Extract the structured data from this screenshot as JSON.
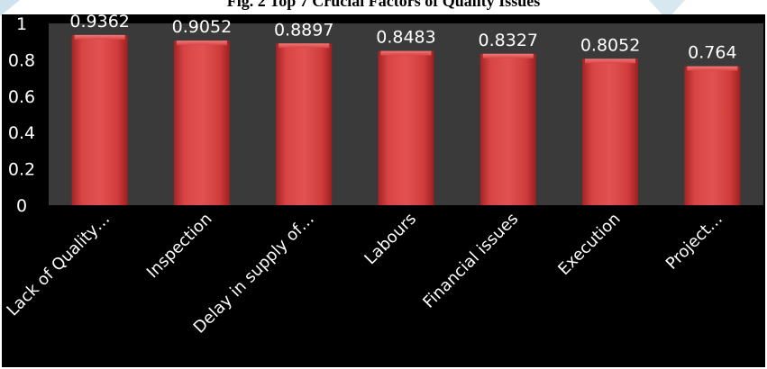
{
  "figure": {
    "title": "Fig. 2 Top 7 Crucial Factors of Quality Issues"
  },
  "colors": {
    "page_background": "#ffffff",
    "chart_background": "#000000",
    "plot_background": "#3a3a3a",
    "bar_fill": "#d03a3a",
    "text": "#ffffff",
    "watermark": "#cfe3ee"
  },
  "chart_data": {
    "type": "bar",
    "title": "",
    "categories": [
      "Lack of Quality…",
      "Inspection",
      "Delay in supply of…",
      "Labours",
      "Financial issues",
      "Execution",
      "Project…"
    ],
    "values": [
      0.9362,
      0.9052,
      0.8897,
      0.8483,
      0.8327,
      0.8052,
      0.764
    ],
    "data_labels": [
      "0.9362",
      "0.9052",
      "0.8897",
      "0.8483",
      "0.8327",
      "0.8052",
      "0.764"
    ],
    "ylim": [
      0,
      1
    ],
    "yticks": [
      0,
      0.2,
      0.4,
      0.6,
      0.8,
      1
    ],
    "ytick_labels": [
      "0",
      "0.2",
      "0.4",
      "0.6",
      "0.8",
      "1"
    ],
    "xlabel": "",
    "ylabel": "",
    "grid": false,
    "legend": "none"
  }
}
